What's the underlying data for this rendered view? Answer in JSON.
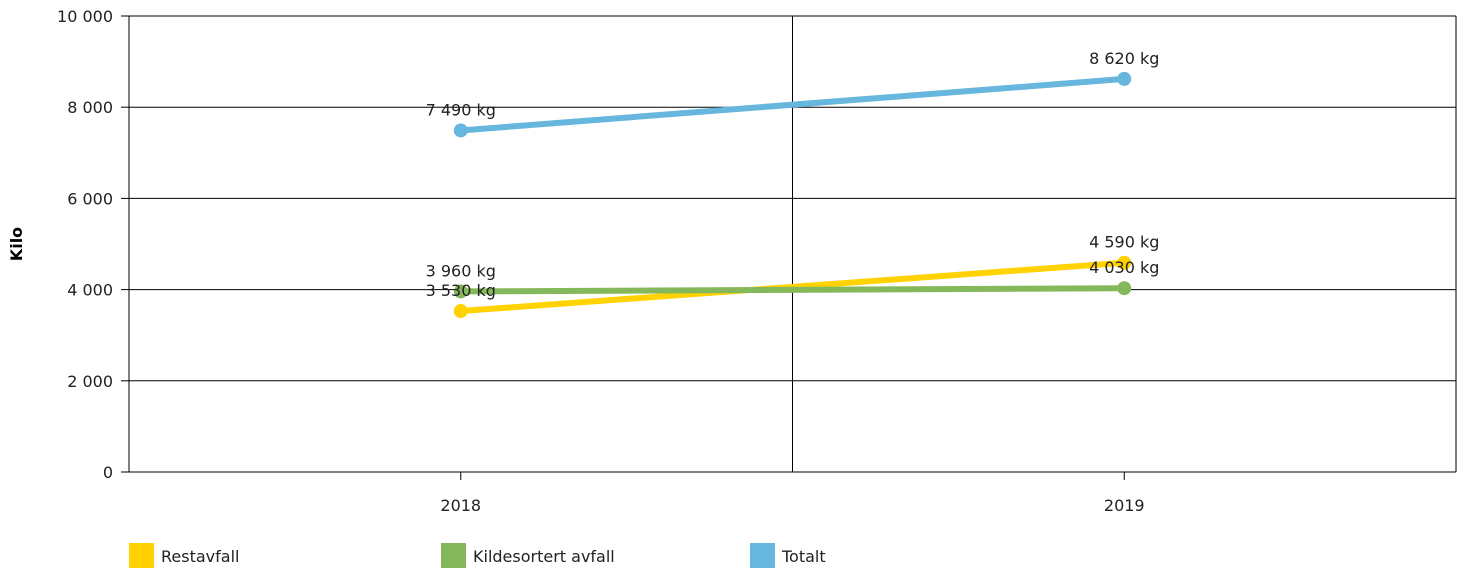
{
  "chart_data": {
    "type": "line",
    "ylabel": "Kilo",
    "xlabel": "",
    "x": [
      "2018",
      "2019"
    ],
    "ylim": [
      0,
      10000
    ],
    "yticks": [
      0,
      2000,
      4000,
      6000,
      8000,
      10000
    ],
    "ytick_labels": [
      "0",
      "2 000",
      "4 000",
      "6 000",
      "8 000",
      "10 000"
    ],
    "grid": true,
    "legend_position": "bottom",
    "series": [
      {
        "name": "Restavfall",
        "color": "#FFD200",
        "values": [
          3530,
          4590
        ],
        "labels": [
          "3 530 kg",
          "4 590 kg"
        ]
      },
      {
        "name": "Kildesortert avfall",
        "color": "#85B85A",
        "values": [
          3960,
          4030
        ],
        "labels": [
          "3 960 kg",
          "4 030 kg"
        ]
      },
      {
        "name": "Totalt",
        "color": "#66B6DE",
        "values": [
          7490,
          8620
        ],
        "labels": [
          "7 490 kg",
          "8 620 kg"
        ]
      }
    ]
  }
}
